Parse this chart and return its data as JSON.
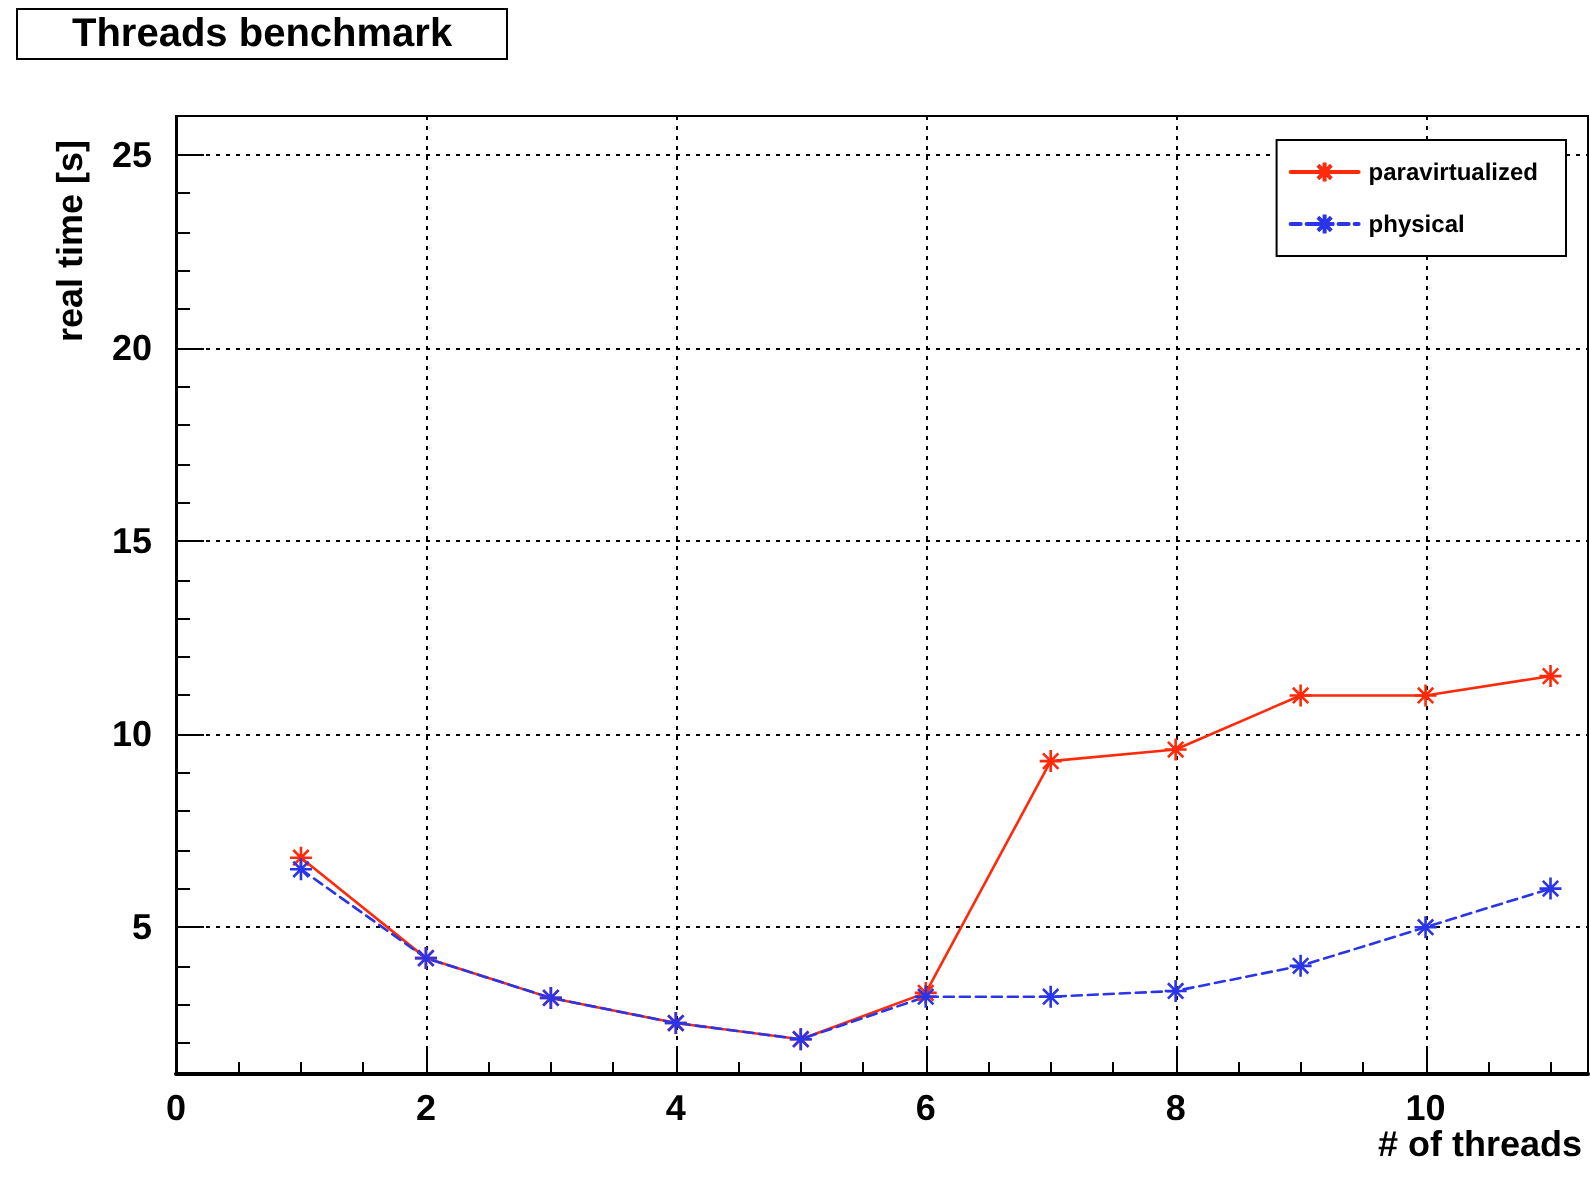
{
  "chart_data": {
    "type": "line",
    "title": "Threads benchmark",
    "xlabel": "# of threads",
    "ylabel": "real time [s]",
    "x": [
      1,
      2,
      3,
      4,
      5,
      6,
      7,
      8,
      9,
      10,
      11
    ],
    "series": [
      {
        "name": "paravirtualized",
        "color": "#ff2a0a",
        "line_style": "solid",
        "values": [
          6.8,
          4.2,
          3.17,
          2.52,
          2.1,
          3.3,
          9.3,
          9.6,
          11.0,
          11.0,
          11.5
        ]
      },
      {
        "name": "physical",
        "color": "#2a35e8",
        "line_style": "dashed",
        "values": [
          6.5,
          4.2,
          3.17,
          2.52,
          2.1,
          3.2,
          3.2,
          3.35,
          4.0,
          5.0,
          6.0
        ]
      }
    ],
    "xlim": [
      0,
      11.3
    ],
    "xticks": [
      0,
      2,
      4,
      6,
      8,
      10
    ],
    "ylim": [
      1.2,
      26
    ],
    "yticks": [
      5,
      10,
      15,
      20,
      25
    ],
    "grid": true,
    "legend": "top right",
    "marker": "cross"
  }
}
